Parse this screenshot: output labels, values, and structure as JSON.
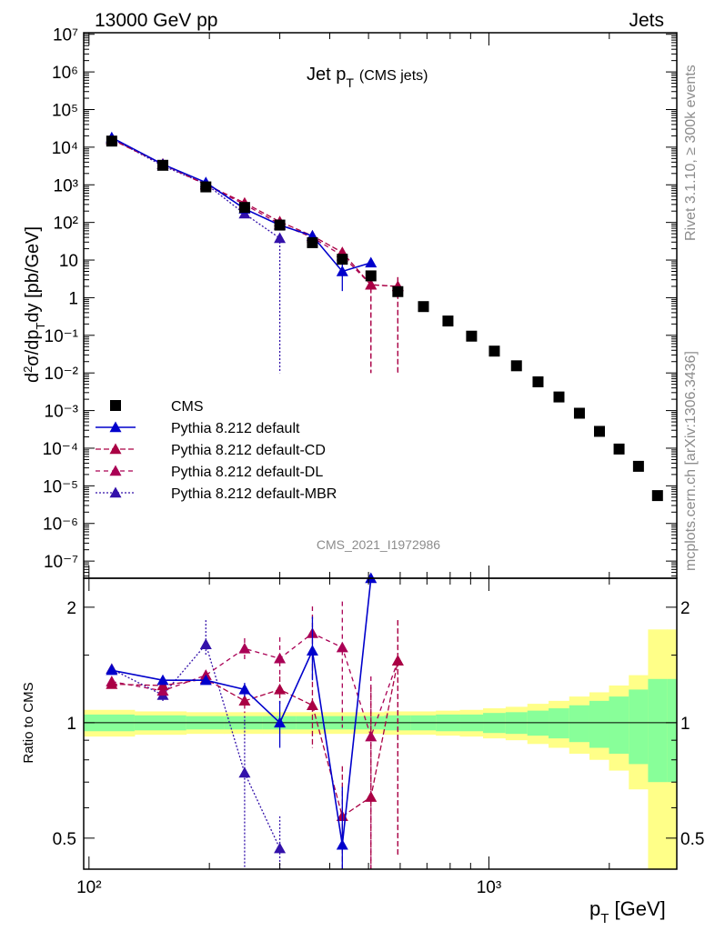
{
  "header": {
    "left": "13000 GeV pp",
    "right": "Jets"
  },
  "side": {
    "top": "Rivet 3.1.10, ≥ 300k events",
    "bottom": "mcplots.cern.ch [arXiv:1306.3436]"
  },
  "watermark": "CMS_2021_I1972986",
  "chart_data": [
    {
      "type": "scatter",
      "panel": "main",
      "title": "Jet p",
      "title_sub": "T",
      "title_note": "(CMS jets)",
      "ylabel": "d²σ/dp_T dy [pb/GeV]",
      "xlabel": "p_T [GeV]",
      "xscale": "log",
      "yscale": "log",
      "xlim": [
        97,
        2950
      ],
      "ylim": [
        3.5e-08,
        11000000.0
      ],
      "ytick_labels": [
        "10⁻⁷",
        "10⁻⁶",
        "10⁻⁵",
        "10⁻⁴",
        "10⁻³",
        "10⁻²",
        "10⁻¹",
        "1",
        "10",
        "10²",
        "10³",
        "10⁴",
        "10⁵",
        "10⁶",
        "10⁷"
      ],
      "xtick_labels": [
        "10²",
        "10³"
      ],
      "legend": [
        "CMS",
        "Pythia 8.212 default",
        "Pythia 8.212 default-CD",
        "Pythia 8.212 default-DL",
        "Pythia 8.212 default-MBR"
      ],
      "legend_position": "bottom-left",
      "colors": {
        "data": "#000000",
        "default": "#0000cc",
        "cd": "#aa0044",
        "dl": "#aa0055",
        "mbr": "#3311aa"
      },
      "series": [
        {
          "name": "CMS",
          "x": [
            114,
            153,
            196,
            245,
            300,
            362,
            430,
            507,
            592,
            686,
            790,
            905,
            1032,
            1172,
            1327,
            1497,
            1684,
            1890,
            2116,
            2366,
            2640
          ],
          "y": [
            14500,
            3300,
            880,
            250,
            85,
            29,
            10.5,
            3.8,
            1.45,
            0.58,
            0.24,
            0.095,
            0.038,
            0.0155,
            0.0058,
            0.0023,
            0.00085,
            0.00028,
            9.5e-05,
            3.3e-05,
            5.5e-06
          ]
        },
        {
          "name": "Pythia 8.212 default",
          "x": [
            114,
            153,
            196,
            245,
            300,
            362,
            430,
            507
          ],
          "y": [
            18000,
            3500,
            1150,
            230,
            85,
            44,
            5,
            8.5
          ],
          "yerr_lo": [
            0,
            0,
            0,
            0,
            0,
            0,
            3.5,
            0
          ],
          "yerr_hi": [
            0,
            0,
            0,
            0,
            0,
            0,
            4,
            0
          ]
        },
        {
          "name": "Pythia 8.212 default-CD",
          "x": [
            114,
            153,
            196,
            245,
            300,
            362,
            430,
            507,
            592
          ],
          "y": [
            16000,
            3600,
            1020,
            330,
            105,
            44,
            16,
            2.2,
            2
          ],
          "yerr_lo": [
            0,
            0,
            0,
            0,
            0,
            0,
            4,
            2.19,
            1.99
          ],
          "yerr_hi": [
            0,
            0,
            0,
            0,
            0,
            0,
            4,
            0.8,
            1.5
          ]
        },
        {
          "name": "Pythia 8.212 default-DL",
          "x": [
            114,
            153,
            196,
            245,
            300,
            362,
            430,
            507,
            592
          ],
          "y": [
            16000,
            3500,
            1000,
            300,
            90,
            40,
            13,
            2.2,
            2
          ],
          "yerr_lo": [
            0,
            0,
            0,
            0,
            0,
            0,
            4,
            2.19,
            1.99
          ],
          "yerr_hi": [
            0,
            0,
            0,
            0,
            0,
            0,
            4,
            0.8,
            1.5
          ]
        },
        {
          "name": "Pythia 8.212 default-MBR",
          "x": [
            114,
            153,
            196,
            245,
            300
          ],
          "y": [
            17000,
            3200,
            1050,
            170,
            38
          ],
          "yerr_lo": [
            0,
            0,
            0,
            0,
            37.99
          ],
          "yerr_hi": [
            0,
            0,
            0,
            0,
            0
          ]
        }
      ]
    },
    {
      "type": "line",
      "panel": "ratio",
      "ylabel": "Ratio to CMS",
      "xscale": "log",
      "yscale": "log",
      "xlim": [
        97,
        2950
      ],
      "ylim": [
        0.415,
        2.38
      ],
      "ytick_labels": [
        "0.5",
        "1",
        "2"
      ],
      "ytick_values": [
        0.5,
        1,
        2
      ],
      "band_edges": [
        97,
        130,
        175,
        218,
        272,
        330,
        395,
        466,
        548,
        638,
        737,
        846,
        967,
        1101,
        1248,
        1410,
        1588,
        1784,
        1997,
        2238,
        2500,
        2790,
        2950
      ],
      "band_inner": [
        0.05,
        0.045,
        0.04,
        0.04,
        0.04,
        0.04,
        0.04,
        0.04,
        0.045,
        0.045,
        0.05,
        0.05,
        0.06,
        0.065,
        0.075,
        0.09,
        0.11,
        0.14,
        0.17,
        0.22,
        0.3,
        0.3
      ],
      "band_outer": [
        0.08,
        0.07,
        0.065,
        0.065,
        0.065,
        0.065,
        0.065,
        0.065,
        0.07,
        0.07,
        0.075,
        0.08,
        0.09,
        0.1,
        0.12,
        0.14,
        0.17,
        0.2,
        0.25,
        0.33,
        0.75,
        0.75
      ],
      "series": [
        {
          "name": "Pythia 8.212 default",
          "x": [
            114,
            153,
            196,
            245,
            300,
            362,
            430,
            507
          ],
          "y": [
            1.37,
            1.29,
            1.29,
            1.22,
            1.0,
            1.54,
            0.48,
            2.38
          ],
          "yerr_lo": [
            0.03,
            0.02,
            0.03,
            0.05,
            0.14,
            0.25,
            0.1,
            0
          ],
          "yerr_hi": [
            0.03,
            0.02,
            0.03,
            0.05,
            0.14,
            0.35,
            0.2,
            0
          ]
        },
        {
          "name": "Pythia 8.212 default-CD",
          "x": [
            114,
            153,
            196,
            245,
            300,
            362,
            430,
            507,
            592
          ],
          "y": [
            1.26,
            1.25,
            1.3,
            1.14,
            1.22,
            1.11,
            0.57,
            0.64,
            1.45
          ],
          "yerr_lo": [
            0.03,
            0.03,
            0.04,
            0.08,
            0.1,
            0.25,
            0.3,
            0.4,
            1.0
          ],
          "yerr_hi": [
            0.03,
            0.03,
            0.04,
            0.1,
            0.1,
            0.3,
            0.2,
            0.6,
            0.4
          ]
        },
        {
          "name": "Pythia 8.212 default-DL",
          "x": [
            114,
            153,
            196,
            245,
            300,
            362,
            430,
            507,
            592
          ],
          "y": [
            1.28,
            1.21,
            1.33,
            1.56,
            1.47,
            1.71,
            1.57,
            0.92,
            1.45
          ],
          "yerr_lo": [
            0.03,
            0.03,
            0.04,
            0.1,
            0.15,
            0.3,
            0.6,
            0.6,
            1.0
          ],
          "yerr_hi": [
            0.03,
            0.03,
            0.04,
            0.1,
            0.2,
            0.3,
            0.5,
            0.4,
            0.4
          ]
        },
        {
          "name": "Pythia 8.212 default-MBR",
          "x": [
            114,
            153,
            196,
            245,
            300
          ],
          "y": [
            1.38,
            1.18,
            1.6,
            0.74,
            0.47
          ],
          "yerr_lo": [
            0.04,
            0.05,
            0.1,
            0.4,
            0.4
          ],
          "yerr_hi": [
            0.04,
            0.05,
            0.25,
            0.3,
            0.1
          ]
        }
      ]
    }
  ]
}
